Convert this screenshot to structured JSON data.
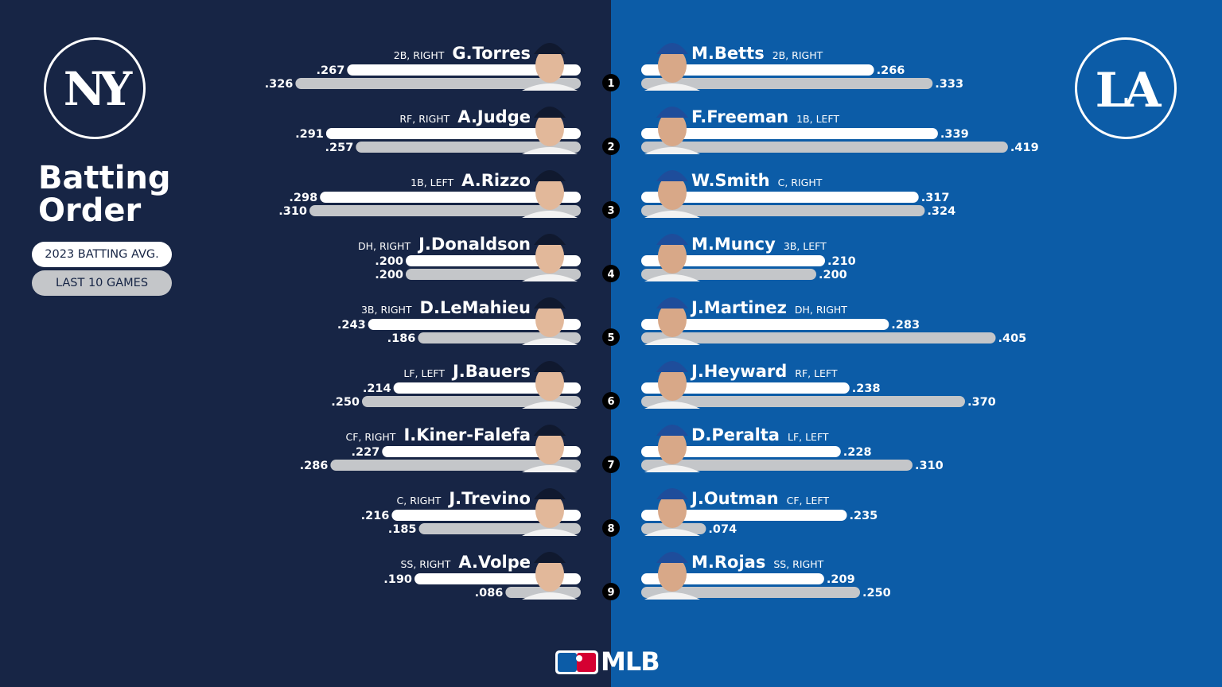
{
  "header": {
    "title_line1": "Batting",
    "title_line2": "Order",
    "legend": {
      "avg_label": "2023 BATTING AVG.",
      "last10_label": "LAST 10 GAMES"
    }
  },
  "teams": {
    "left": {
      "logo_text": "NY",
      "color": "#172545"
    },
    "right": {
      "logo_text": "LA",
      "color": "#0c5ca7"
    }
  },
  "footer": {
    "brand": "MLB"
  },
  "colors": {
    "avg_bar": "#ffffff",
    "last10_bar": "#c4c6c9"
  },
  "chart_data": {
    "type": "bar",
    "orientation": "horizontal-mirrored",
    "series_labels": [
      "2023 BATTING AVG.",
      "LAST 10 GAMES"
    ],
    "xlim": [
      0,
      0.45
    ],
    "lineup": [
      {
        "order": "1",
        "left": {
          "name": "G.Torres",
          "info": "2B, RIGHT",
          "avg": 0.267,
          "avg_label": ".267",
          "last10": 0.326,
          "last10_label": ".326"
        },
        "right": {
          "name": "M.Betts",
          "info": "2B, RIGHT",
          "avg": 0.266,
          "avg_label": ".266",
          "last10": 0.333,
          "last10_label": ".333"
        }
      },
      {
        "order": "2",
        "left": {
          "name": "A.Judge",
          "info": "RF, RIGHT",
          "avg": 0.291,
          "avg_label": ".291",
          "last10": 0.257,
          "last10_label": ".257"
        },
        "right": {
          "name": "F.Freeman",
          "info": "1B, LEFT",
          "avg": 0.339,
          "avg_label": ".339",
          "last10": 0.419,
          "last10_label": ".419"
        }
      },
      {
        "order": "3",
        "left": {
          "name": "A.Rizzo",
          "info": "1B, LEFT",
          "avg": 0.298,
          "avg_label": ".298",
          "last10": 0.31,
          "last10_label": ".310"
        },
        "right": {
          "name": "W.Smith",
          "info": "C, RIGHT",
          "avg": 0.317,
          "avg_label": ".317",
          "last10": 0.324,
          "last10_label": ".324"
        }
      },
      {
        "order": "4",
        "left": {
          "name": "J.Donaldson",
          "info": "DH, RIGHT",
          "avg": 0.2,
          "avg_label": ".200",
          "last10": 0.2,
          "last10_label": ".200"
        },
        "right": {
          "name": "M.Muncy",
          "info": "3B, LEFT",
          "avg": 0.21,
          "avg_label": ".210",
          "last10": 0.2,
          "last10_label": ".200"
        }
      },
      {
        "order": "5",
        "left": {
          "name": "D.LeMahieu",
          "info": "3B, RIGHT",
          "avg": 0.243,
          "avg_label": ".243",
          "last10": 0.186,
          "last10_label": ".186"
        },
        "right": {
          "name": "J.Martinez",
          "info": "DH, RIGHT",
          "avg": 0.283,
          "avg_label": ".283",
          "last10": 0.405,
          "last10_label": ".405"
        }
      },
      {
        "order": "6",
        "left": {
          "name": "J.Bauers",
          "info": "LF, LEFT",
          "avg": 0.214,
          "avg_label": ".214",
          "last10": 0.25,
          "last10_label": ".250"
        },
        "right": {
          "name": "J.Heyward",
          "info": "RF, LEFT",
          "avg": 0.238,
          "avg_label": ".238",
          "last10": 0.37,
          "last10_label": ".370"
        }
      },
      {
        "order": "7",
        "left": {
          "name": "I.Kiner-Falefa",
          "info": "CF, RIGHT",
          "avg": 0.227,
          "avg_label": ".227",
          "last10": 0.286,
          "last10_label": ".286"
        },
        "right": {
          "name": "D.Peralta",
          "info": "LF, LEFT",
          "avg": 0.228,
          "avg_label": ".228",
          "last10": 0.31,
          "last10_label": ".310"
        }
      },
      {
        "order": "8",
        "left": {
          "name": "J.Trevino",
          "info": "C, RIGHT",
          "avg": 0.216,
          "avg_label": ".216",
          "last10": 0.185,
          "last10_label": ".185"
        },
        "right": {
          "name": "J.Outman",
          "info": "CF, LEFT",
          "avg": 0.235,
          "avg_label": ".235",
          "last10": 0.074,
          "last10_label": ".074"
        }
      },
      {
        "order": "9",
        "left": {
          "name": "A.Volpe",
          "info": "SS, RIGHT",
          "avg": 0.19,
          "avg_label": ".190",
          "last10": 0.086,
          "last10_label": ".086"
        },
        "right": {
          "name": "M.Rojas",
          "info": "SS, RIGHT",
          "avg": 0.209,
          "avg_label": ".209",
          "last10": 0.25,
          "last10_label": ".250"
        }
      }
    ]
  }
}
